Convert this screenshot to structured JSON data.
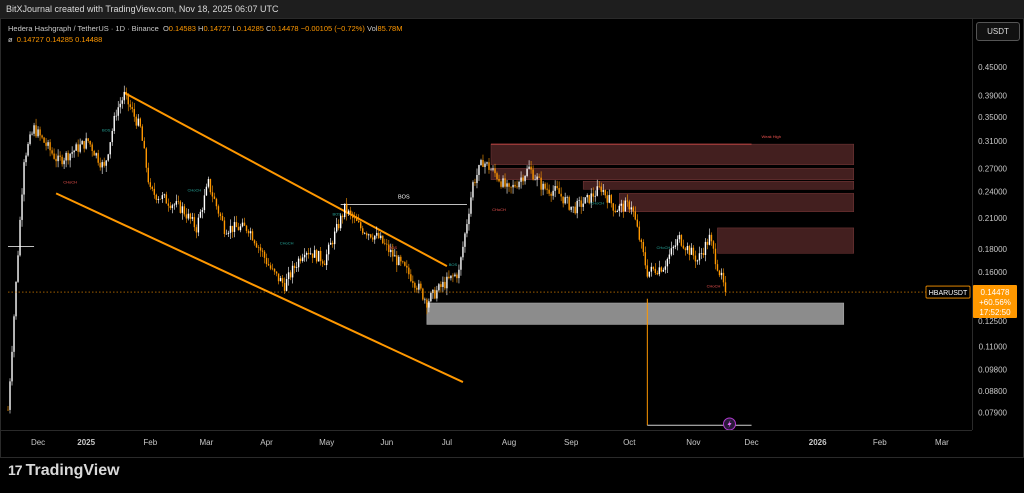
{
  "header": {
    "credit": "BitXJournal created with TradingView.com, Nov 18, 2025 06:07 UTC"
  },
  "legend": {
    "pair": "Hedera Hashgraph / TetherUS · 1D · Binance",
    "open_label": "O",
    "open": "0.14583",
    "high_label": "H",
    "high": "0.14727",
    "low_label": "L",
    "low": "0.14285",
    "close_label": "C",
    "close": "0.14478",
    "change": "−0.00105 (−0.72%)",
    "vol_label": "Vol",
    "vol": "85.78M",
    "ma_symbol": "ø",
    "ma_values": "0.14727  0.14285  0.14488"
  },
  "currency_button": "USDT",
  "price_tag": {
    "symbol": "HBARUSDT",
    "price": "0.14478",
    "change": "+60.56%",
    "countdown": "17:52:50"
  },
  "branding": {
    "logo": "17",
    "name": "TradingView"
  },
  "colors": {
    "background": "#000000",
    "up": "#ffffff",
    "down": "#ff9800",
    "channel": "#ff9800",
    "supply_zone": "#5a2a2a",
    "demand_zone": "#8c8c8c",
    "price_tag_bg": "#ff9800"
  },
  "chart_data": {
    "type": "candlestick",
    "scale": "log",
    "ylim": [
      0.073,
      0.5
    ],
    "y_ticks": [
      "0.45000",
      "0.39000",
      "0.35000",
      "0.31000",
      "0.27000",
      "0.24000",
      "0.21000",
      "0.18000",
      "0.16000",
      "0.14478",
      "0.12500",
      "0.11000",
      "0.09800",
      "0.08800",
      "0.07900"
    ],
    "x_ticks": [
      "Dec",
      "2025",
      "Feb",
      "Mar",
      "Apr",
      "May",
      "Jun",
      "Jul",
      "Aug",
      "Sep",
      "Oct",
      "Nov",
      "Dec",
      "2026",
      "Feb",
      "Mar"
    ],
    "x_range": [
      "2024-11-25",
      "2026-03-20"
    ],
    "last_price": 0.14478,
    "path": [
      [
        "2024-11-25",
        0.08
      ],
      [
        "2024-12-03",
        0.285
      ],
      [
        "2024-12-08",
        0.33
      ],
      [
        "2024-12-20",
        0.28
      ],
      [
        "2025-01-04",
        0.31
      ],
      [
        "2025-01-12",
        0.27
      ],
      [
        "2025-01-18",
        0.36
      ],
      [
        "2025-01-22",
        0.39
      ],
      [
        "2025-01-30",
        0.33
      ],
      [
        "2025-02-04",
        0.24
      ],
      [
        "2025-02-12",
        0.23
      ],
      [
        "2025-02-20",
        0.22
      ],
      [
        "2025-02-27",
        0.2
      ],
      [
        "2025-03-05",
        0.25
      ],
      [
        "2025-03-13",
        0.2
      ],
      [
        "2025-03-25",
        0.2
      ],
      [
        "2025-04-06",
        0.16
      ],
      [
        "2025-04-12",
        0.15
      ],
      [
        "2025-04-22",
        0.18
      ],
      [
        "2025-05-02",
        0.17
      ],
      [
        "2025-05-12",
        0.22
      ],
      [
        "2025-05-20",
        0.2
      ],
      [
        "2025-05-29",
        0.19
      ],
      [
        "2025-06-07",
        0.17
      ],
      [
        "2025-06-15",
        0.155
      ],
      [
        "2025-06-22",
        0.138
      ],
      [
        "2025-06-30",
        0.15
      ],
      [
        "2025-07-08",
        0.16
      ],
      [
        "2025-07-15",
        0.25
      ],
      [
        "2025-07-20",
        0.28
      ],
      [
        "2025-07-27",
        0.26
      ],
      [
        "2025-08-02",
        0.24
      ],
      [
        "2025-08-12",
        0.27
      ],
      [
        "2025-08-19",
        0.245
      ],
      [
        "2025-08-26",
        0.24
      ],
      [
        "2025-09-03",
        0.22
      ],
      [
        "2025-09-10",
        0.23
      ],
      [
        "2025-09-17",
        0.245
      ],
      [
        "2025-09-24",
        0.22
      ],
      [
        "2025-10-02",
        0.225
      ],
      [
        "2025-10-10",
        0.16
      ],
      [
        "2025-10-18",
        0.165
      ],
      [
        "2025-10-26",
        0.19
      ],
      [
        "2025-11-04",
        0.17
      ],
      [
        "2025-11-10",
        0.19
      ],
      [
        "2025-11-18",
        0.14478
      ]
    ],
    "annotations": {
      "descending_channel": {
        "upper": [
          [
            "2025-01-22",
            0.395
          ],
          [
            "2025-07-02",
            0.165
          ]
        ],
        "lower": [
          [
            "2024-12-19",
            0.238
          ],
          [
            "2025-07-10",
            0.092
          ]
        ]
      },
      "bos_line": {
        "x0": "2025-05-10",
        "x1": "2025-07-12",
        "y": 0.225,
        "label": "BOS"
      },
      "bos_left_line": {
        "x0": "2024-11-25",
        "x1": "2024-12-08",
        "y": 0.182
      },
      "supply_zones": [
        {
          "x0": "2025-07-24",
          "x1": "2026-01-21",
          "y0": 0.275,
          "y1": 0.305
        },
        {
          "x0": "2025-07-24",
          "x1": "2026-01-21",
          "y0": 0.255,
          "y1": 0.27
        },
        {
          "x0": "2025-09-08",
          "x1": "2026-01-21",
          "y0": 0.243,
          "y1": 0.253
        },
        {
          "x0": "2025-09-26",
          "x1": "2026-01-21",
          "y0": 0.217,
          "y1": 0.238
        },
        {
          "x0": "2025-11-14",
          "x1": "2026-01-21",
          "y0": 0.176,
          "y1": 0.2
        }
      ],
      "weak_high": {
        "x0": "2025-07-24",
        "x1": "2025-12-01",
        "y": 0.305,
        "label": "Weak High"
      },
      "demand_zone": {
        "x0": "2025-06-22",
        "x1": "2026-01-16",
        "y0": 0.123,
        "y1": 0.137
      },
      "low_wick_line": {
        "x": "2025-10-10",
        "y0": 0.14,
        "y1": 0.074,
        "x1": "2025-12-01"
      },
      "choch_labels": [
        {
          "x": "2025-01-13",
          "y": 0.325,
          "label": "BOS",
          "color": "#26a69a"
        },
        {
          "x": "2024-12-26",
          "y": 0.25,
          "label": "CHoCH",
          "color": "#ef5350"
        },
        {
          "x": "2025-02-26",
          "y": 0.24,
          "label": "CHoCH",
          "color": "#26a69a"
        },
        {
          "x": "2025-04-13",
          "y": 0.184,
          "label": "CHoCH",
          "color": "#26a69a"
        },
        {
          "x": "2025-05-08",
          "y": 0.213,
          "label": "BOS",
          "color": "#26a69a"
        },
        {
          "x": "2025-06-05",
          "y": 0.18,
          "label": "BOS",
          "color": "#ef5350"
        },
        {
          "x": "2025-07-05",
          "y": 0.165,
          "label": "BOS",
          "color": "#26a69a"
        },
        {
          "x": "2025-07-28",
          "y": 0.218,
          "label": "CHoCH",
          "color": "#ef5350"
        },
        {
          "x": "2025-09-15",
          "y": 0.225,
          "label": "CHoCH",
          "color": "#26a69a"
        },
        {
          "x": "2025-10-18",
          "y": 0.18,
          "label": "CHoCH",
          "color": "#26a69a"
        },
        {
          "x": "2025-11-12",
          "y": 0.148,
          "label": "CHoCH",
          "color": "#ef5350"
        }
      ]
    }
  }
}
